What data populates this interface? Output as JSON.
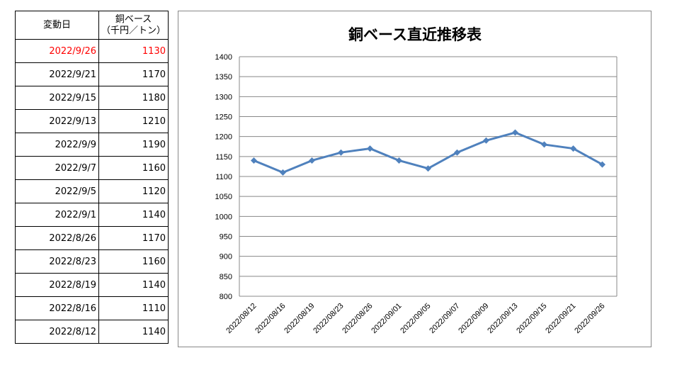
{
  "table": {
    "headers": {
      "date": "変動日",
      "price_line1": "銅ベース",
      "price_line2": "（千円／トン）"
    },
    "rows": [
      {
        "date": "2022/9/26",
        "price": "1130",
        "highlight": true
      },
      {
        "date": "2022/9/21",
        "price": "1170"
      },
      {
        "date": "2022/9/15",
        "price": "1180"
      },
      {
        "date": "2022/9/13",
        "price": "1210"
      },
      {
        "date": "2022/9/9",
        "price": "1190"
      },
      {
        "date": "2022/9/7",
        "price": "1160"
      },
      {
        "date": "2022/9/5",
        "price": "1120"
      },
      {
        "date": "2022/9/1",
        "price": "1140"
      },
      {
        "date": "2022/8/26",
        "price": "1170"
      },
      {
        "date": "2022/8/23",
        "price": "1160"
      },
      {
        "date": "2022/8/19",
        "price": "1140"
      },
      {
        "date": "2022/8/16",
        "price": "1110"
      },
      {
        "date": "2022/8/12",
        "price": "1140"
      }
    ],
    "highlight_color": "#ff0000"
  },
  "chart_data": {
    "type": "line",
    "title": "銅ベース直近推移表",
    "categories": [
      "2022/08/12",
      "2022/08/16",
      "2022/08/19",
      "2022/08/23",
      "2022/08/26",
      "2022/09/01",
      "2022/09/05",
      "2022/09/07",
      "2022/09/09",
      "2022/09/13",
      "2022/09/15",
      "2022/09/21",
      "2022/09/26"
    ],
    "series": [
      {
        "name": "銅ベース",
        "values": [
          1140,
          1110,
          1140,
          1160,
          1170,
          1140,
          1120,
          1160,
          1190,
          1210,
          1180,
          1170,
          1130
        ],
        "color": "#4f81bd"
      }
    ],
    "ylim": [
      800,
      1400
    ],
    "ystep": 50,
    "yticks": [
      "800",
      "850",
      "900",
      "950",
      "1000",
      "1050",
      "1100",
      "1150",
      "1200",
      "1250",
      "1300",
      "1350",
      "1400"
    ],
    "grid": true,
    "xlabel": "",
    "ylabel": ""
  }
}
